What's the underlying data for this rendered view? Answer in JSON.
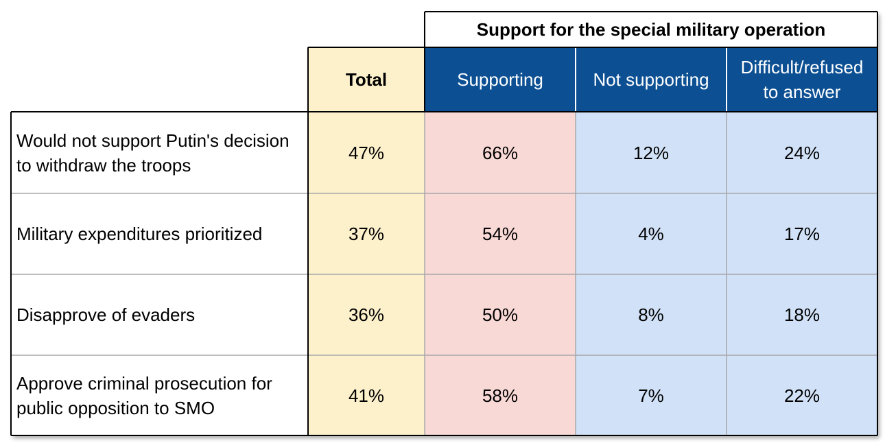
{
  "chart_data": {
    "type": "table",
    "group_header": "Support for the special military operation",
    "columns": [
      "Total",
      "Supporting",
      "Not supporting",
      "Difficult/refused to answer"
    ],
    "rows": [
      {
        "label": "Would not support Putin's decision to withdraw the troops",
        "values": [
          "47%",
          "66%",
          "12%",
          "24%"
        ]
      },
      {
        "label": "Military expenditures prioritized",
        "values": [
          "37%",
          "54%",
          "4%",
          "17%"
        ]
      },
      {
        "label": "Disapprove of evaders",
        "values": [
          "36%",
          "50%",
          "8%",
          "18%"
        ]
      },
      {
        "label": "Approve criminal prosecution for public opposition to SMO",
        "values": [
          "41%",
          "58%",
          "7%",
          "22%"
        ]
      }
    ]
  },
  "colors": {
    "total_column": "#fdf1cc",
    "supporting_column": "#f8d9d6",
    "other_columns": "#d1e1f7",
    "header_background": "#0c5093",
    "header_text": "#ffffff"
  }
}
